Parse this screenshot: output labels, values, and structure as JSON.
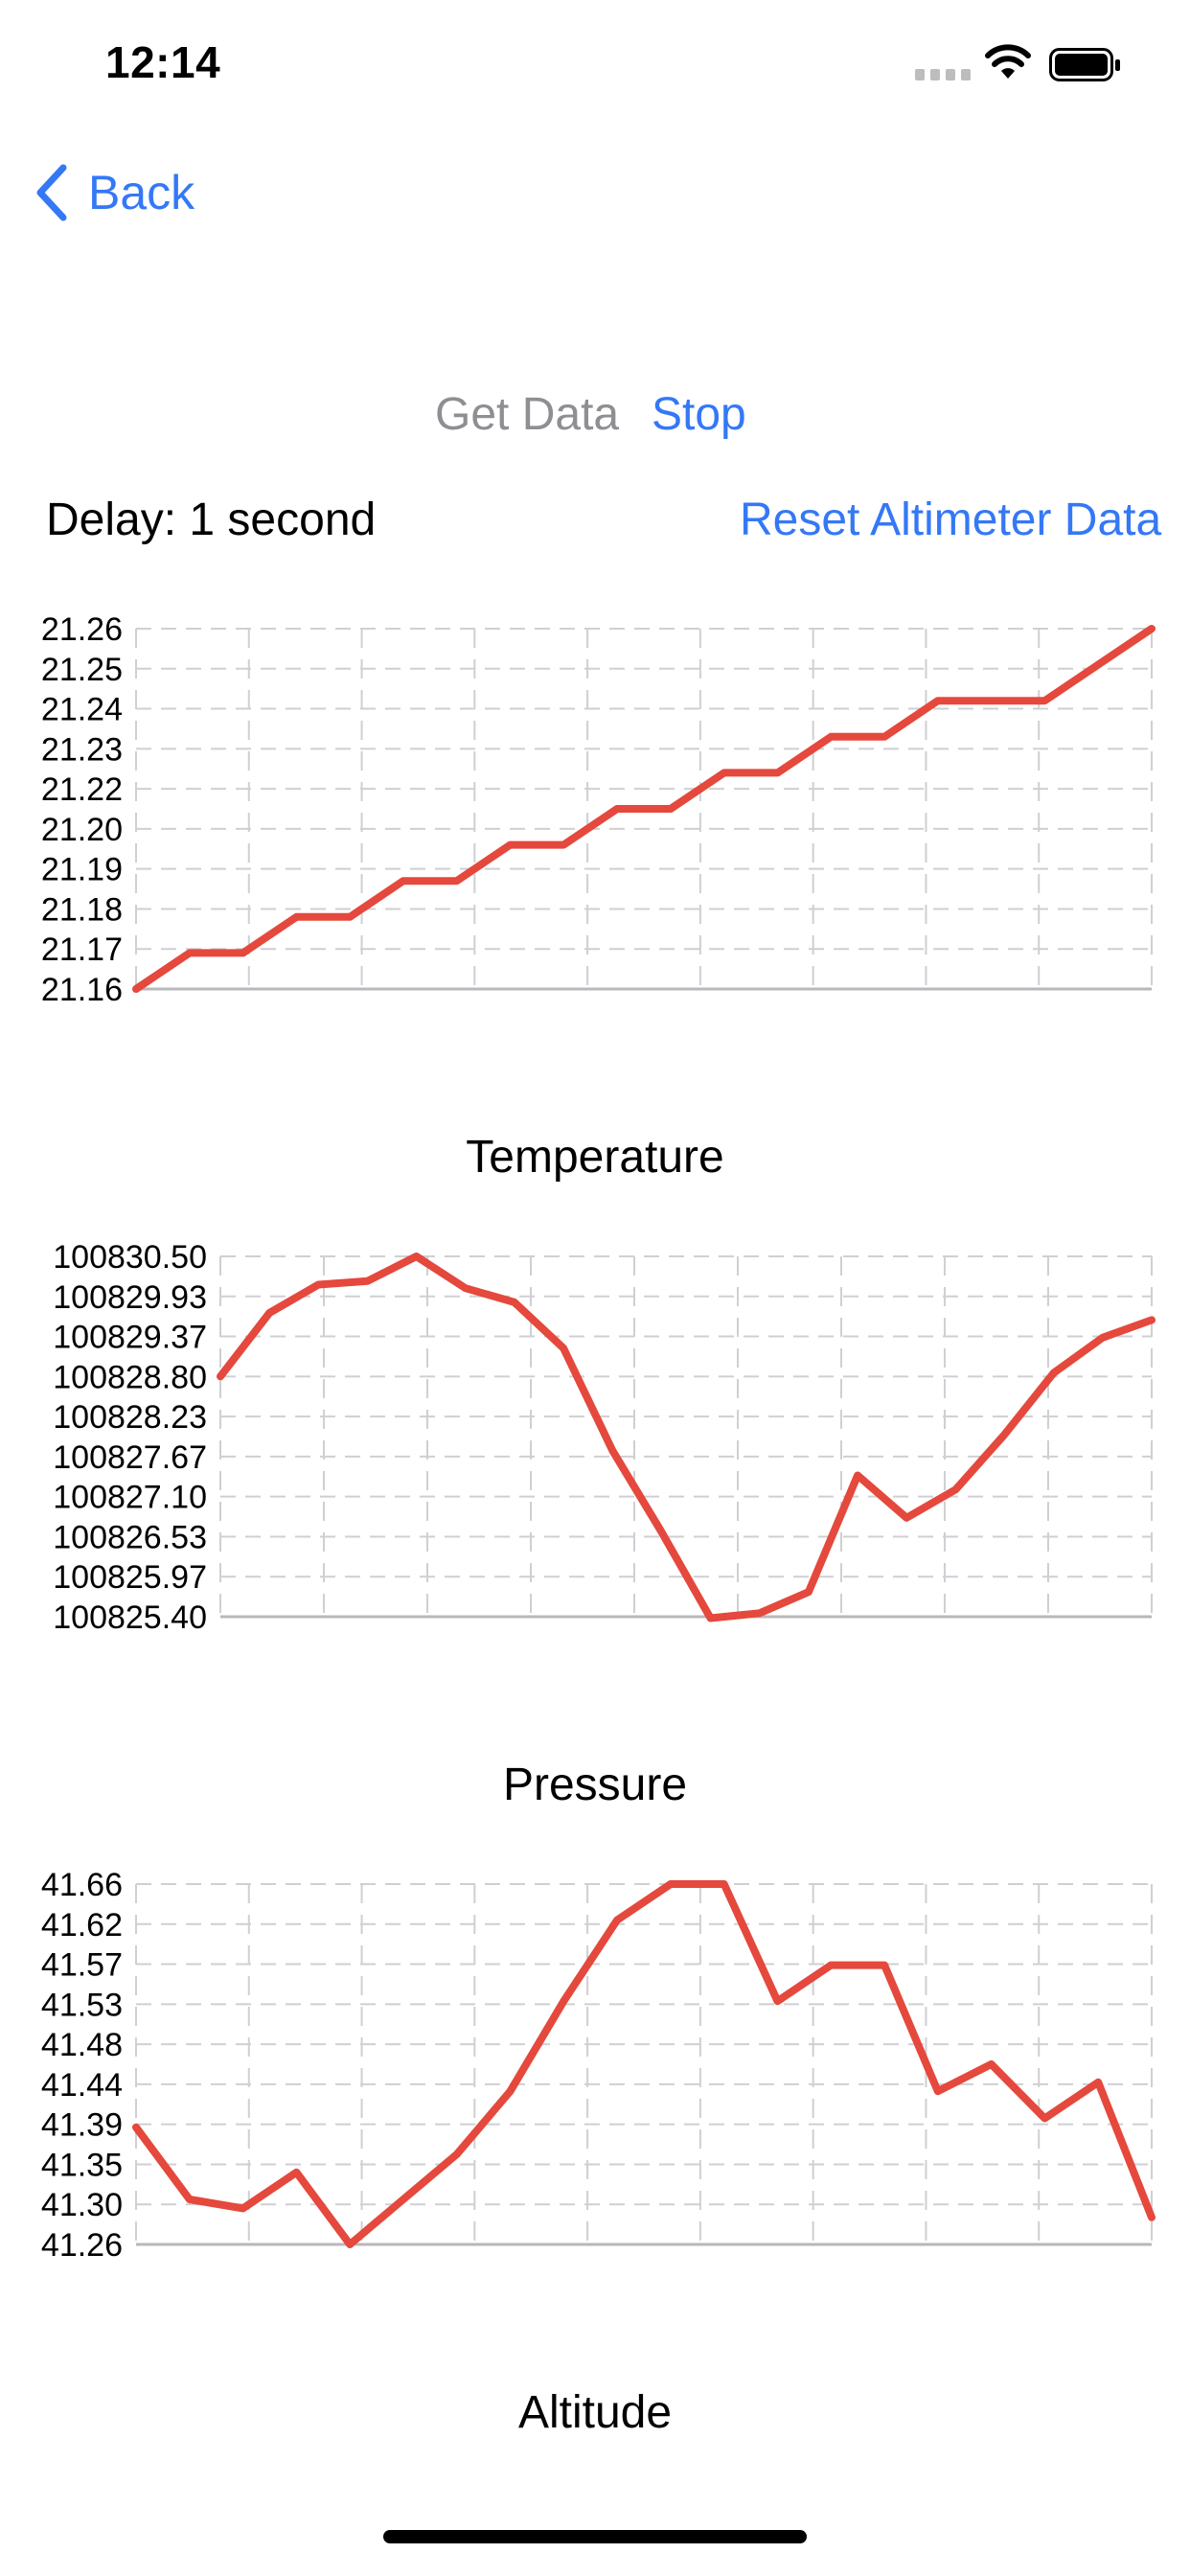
{
  "status_bar": {
    "time": "12:14"
  },
  "nav": {
    "back_label": "Back"
  },
  "controls": {
    "get_data_label": "Get Data",
    "stop_label": "Stop",
    "delay_label": "Delay: 1 second",
    "reset_label": "Reset Altimeter Data"
  },
  "colors": {
    "accent": "#3478f6",
    "disabled": "#8e8e93",
    "series": "#e5483c",
    "grid": "#cfcfd4"
  },
  "chart_data": [
    {
      "type": "line",
      "title": "Temperature",
      "ylim": [
        21.16,
        21.26
      ],
      "yticks": [
        "21.26",
        "21.25",
        "21.24",
        "21.23",
        "21.22",
        "21.20",
        "21.19",
        "21.18",
        "21.17",
        "21.16"
      ],
      "grid": true,
      "series": [
        {
          "values": [
            21.16,
            21.17,
            21.17,
            21.18,
            21.18,
            21.19,
            21.19,
            21.2,
            21.2,
            21.21,
            21.21,
            21.22,
            21.22,
            21.23,
            21.23,
            21.24,
            21.24,
            21.24,
            21.25,
            21.26
          ]
        }
      ]
    },
    {
      "type": "line",
      "title": "Pressure",
      "ylim": [
        100825.4,
        100830.5
      ],
      "yticks": [
        "100830.50",
        "100829.93",
        "100829.37",
        "100828.80",
        "100828.23",
        "100827.67",
        "100827.10",
        "100826.53",
        "100825.97",
        "100825.40"
      ],
      "grid": true,
      "series": [
        {
          "values": [
            100828.8,
            100829.7,
            100830.1,
            100830.15,
            100830.5,
            100830.05,
            100829.85,
            100829.2,
            100827.75,
            100826.6,
            100825.38,
            100825.45,
            100825.75,
            100827.4,
            100826.8,
            100827.2,
            100827.98,
            100828.85,
            100829.35,
            100829.6
          ]
        }
      ]
    },
    {
      "type": "line",
      "title": "Altitude",
      "ylim": [
        41.26,
        41.66
      ],
      "yticks": [
        "41.66",
        "41.62",
        "41.57",
        "41.53",
        "41.48",
        "41.44",
        "41.39",
        "41.35",
        "41.30",
        "41.26"
      ],
      "grid": true,
      "series": [
        {
          "values": [
            41.39,
            41.31,
            41.3,
            41.34,
            41.26,
            41.31,
            41.36,
            41.43,
            41.53,
            41.62,
            41.66,
            41.66,
            41.53,
            41.57,
            41.57,
            41.43,
            41.46,
            41.4,
            41.44,
            41.29
          ]
        }
      ]
    }
  ]
}
